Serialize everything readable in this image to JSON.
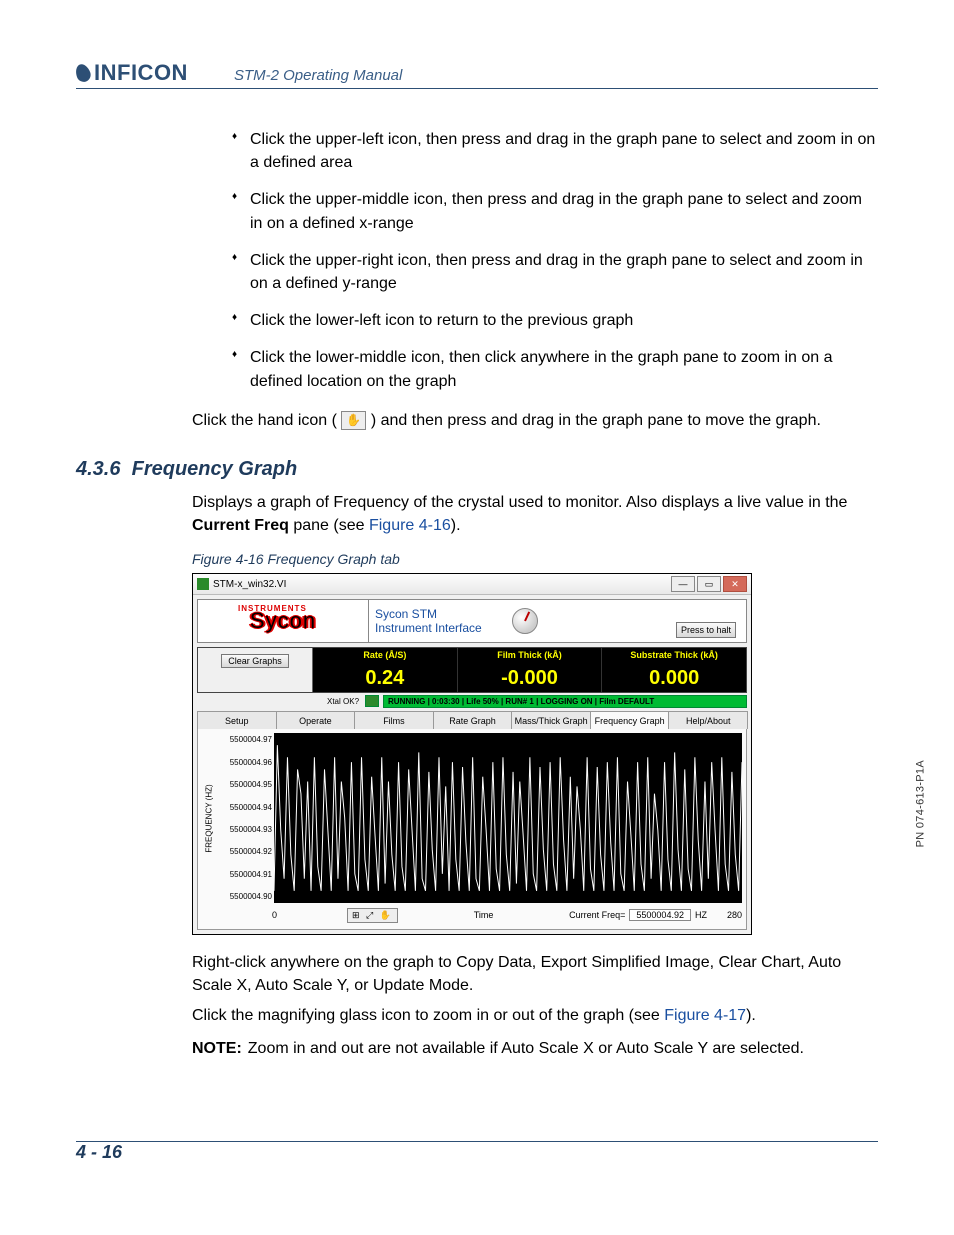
{
  "header": {
    "brand": "INFICON",
    "manual_title": "STM-2 Operating Manual"
  },
  "side_pn": "PN 074-613-P1A",
  "footer": {
    "page": "4 - 16"
  },
  "bullets": [
    "Click the upper-left icon, then press and drag in the graph pane to select and zoom in on a defined area",
    "Click the upper-middle icon, then press and drag in the graph pane to select and zoom in on a defined x-range",
    "Click the upper-right icon, then press and drag in the graph pane to select and zoom in on a defined y-range",
    "Click the lower-left icon to return to the previous graph",
    "Click the lower-middle icon, then click anywhere in the graph pane to zoom in on a defined location on the graph"
  ],
  "hand_para_pre": "Click the hand icon (",
  "hand_para_post": ") and then press and drag in the graph pane to move the graph.",
  "section": {
    "num": "4.3.6",
    "title": "Frequency Graph"
  },
  "sec_para_pre": "Displays a graph of Frequency of the crystal used to monitor. Also displays a live value in the ",
  "sec_para_bold": "Current Freq",
  "sec_para_mid": " pane (see ",
  "sec_para_link": "Figure 4-16",
  "sec_para_post": ").",
  "fig_caption": "Figure 4-16  Frequency Graph tab",
  "after1": "Right-click anywhere on the graph to Copy Data, Export Simplified Image, Clear Chart, Auto Scale X, Auto Scale Y, or Update Mode.",
  "after2_pre": "Click the magnifying glass icon to zoom in or out of the graph (see ",
  "after2_link": "Figure 4-17",
  "after2_post": ").",
  "note_label": "NOTE:",
  "note_body": "Zoom in and out are not available if Auto Scale X or Auto Scale Y are selected.",
  "shot": {
    "title": "STM-x_win32.VI",
    "iface_line1": "Sycon STM",
    "iface_line2": "Instrument Interface",
    "halt_btn": "Press to halt",
    "clear_btn": "Clear Graphs",
    "metrics": [
      {
        "label": "Rate (Å/S)",
        "value": "0.24"
      },
      {
        "label": "Film Thick (kÅ)",
        "value": "-0.000"
      },
      {
        "label": "Substrate Thick (kÅ)",
        "value": "0.000"
      }
    ],
    "xtal_label": "Xtal OK?",
    "status_text": "RUNNING | 0:03:30 | Life  50% | RUN# 1 | LOGGING ON | Film DEFAULT",
    "tabs": [
      "Setup",
      "Operate",
      "Films",
      "Rate Graph",
      "Mass/Thick Graph",
      "Frequency Graph",
      "Help/About"
    ],
    "selected_tab": 5,
    "chart": {
      "type": "line",
      "y_axis_label": "FREQUENCY (HZ)",
      "y_ticks": [
        "5500004.97",
        "5500004.96",
        "5500004.95",
        "5500004.94",
        "5500004.93",
        "5500004.92",
        "5500004.91",
        "5500004.90"
      ],
      "x_axis_label": "Time",
      "x_start": "0",
      "x_end": "280",
      "background_color": "#000000",
      "line_color": "#ffffff",
      "line_width": 1,
      "ylim": [
        5500004.9,
        5500004.97
      ],
      "xlim": [
        0,
        280
      ],
      "series_y": [
        0.905,
        0.965,
        0.93,
        0.91,
        0.96,
        0.92,
        0.905,
        0.955,
        0.945,
        0.91,
        0.95,
        0.905,
        0.96,
        0.915,
        0.905,
        0.955,
        0.93,
        0.905,
        0.96,
        0.91,
        0.95,
        0.935,
        0.905,
        0.958,
        0.912,
        0.905,
        0.96,
        0.918,
        0.905,
        0.952,
        0.928,
        0.905,
        0.96,
        0.908,
        0.95,
        0.92,
        0.905,
        0.958,
        0.915,
        0.905,
        0.955,
        0.93,
        0.905,
        0.962,
        0.91,
        0.905,
        0.954,
        0.922,
        0.905,
        0.96,
        0.912,
        0.948,
        0.905,
        0.958,
        0.918,
        0.905,
        0.956,
        0.925,
        0.905,
        0.96,
        0.91,
        0.905,
        0.952,
        0.93,
        0.905,
        0.958,
        0.914,
        0.905,
        0.96,
        0.92,
        0.905,
        0.954,
        0.908,
        0.95,
        0.928,
        0.905,
        0.96,
        0.912,
        0.905,
        0.956,
        0.922,
        0.905,
        0.958,
        0.916,
        0.905,
        0.96,
        0.926,
        0.905,
        0.952,
        0.91,
        0.948,
        0.93,
        0.905,
        0.96,
        0.914,
        0.905,
        0.956,
        0.92,
        0.905,
        0.958,
        0.925,
        0.905,
        0.96,
        0.912,
        0.905,
        0.95,
        0.928,
        0.905,
        0.958,
        0.916,
        0.905,
        0.96,
        0.91,
        0.945,
        0.93,
        0.905,
        0.958,
        0.918,
        0.905,
        0.962,
        0.922,
        0.905,
        0.955,
        0.914,
        0.905,
        0.96,
        0.926,
        0.905,
        0.95,
        0.91,
        0.958,
        0.93,
        0.905,
        0.96,
        0.916,
        0.905,
        0.954,
        0.92,
        0.905,
        0.958
      ],
      "tools_glyph": "⊞ ⤢ ✋",
      "current_label": "Current Freq=",
      "current_value": "5500004.92",
      "current_unit": "HZ"
    }
  }
}
